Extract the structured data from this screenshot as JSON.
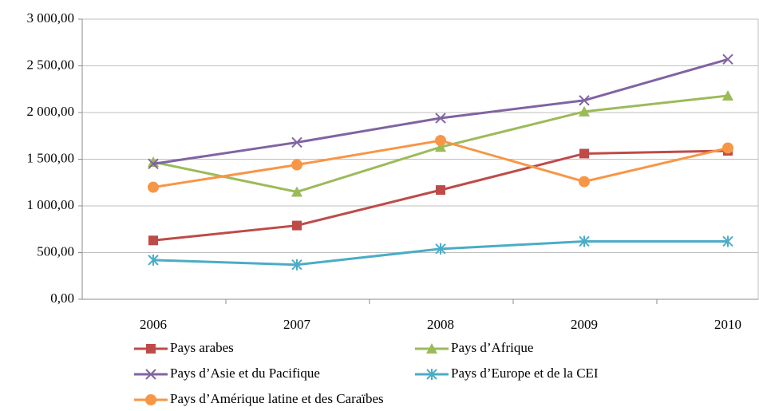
{
  "chart_data": {
    "type": "line",
    "categories": [
      "2006",
      "2007",
      "2008",
      "2009",
      "2010"
    ],
    "series": [
      {
        "name": "Pays arabes",
        "color": "#be4b48",
        "marker": "square",
        "values": [
          630,
          790,
          1170,
          1560,
          1590
        ]
      },
      {
        "name": "Pays d’Afrique",
        "color": "#9bbb59",
        "marker": "triangle",
        "values": [
          1470,
          1150,
          1630,
          2010,
          2180
        ]
      },
      {
        "name": "Pays d’Asie et du Pacifique",
        "color": "#8064a2",
        "marker": "x",
        "values": [
          1450,
          1680,
          1940,
          2130,
          2570
        ]
      },
      {
        "name": "Pays d’Europe et de la CEI",
        "color": "#4bacc6",
        "marker": "star",
        "values": [
          420,
          370,
          540,
          620,
          620
        ]
      },
      {
        "name": "Pays d’Amérique latine et des Caraïbes",
        "color": "#f79646",
        "marker": "circle",
        "values": [
          1200,
          1440,
          1700,
          1260,
          1620
        ]
      }
    ],
    "ylim": [
      0,
      3000
    ],
    "yticks": [
      {
        "value": 0,
        "label": "0,00"
      },
      {
        "value": 500,
        "label": "500,00"
      },
      {
        "value": 1000,
        "label": "1 000,00"
      },
      {
        "value": 1500,
        "label": "1 500,00"
      },
      {
        "value": 2000,
        "label": "2 000,00"
      },
      {
        "value": 2500,
        "label": "2 500,00"
      },
      {
        "value": 3000,
        "label": "3 000,00"
      }
    ],
    "grid": true,
    "legend": "bottom"
  }
}
